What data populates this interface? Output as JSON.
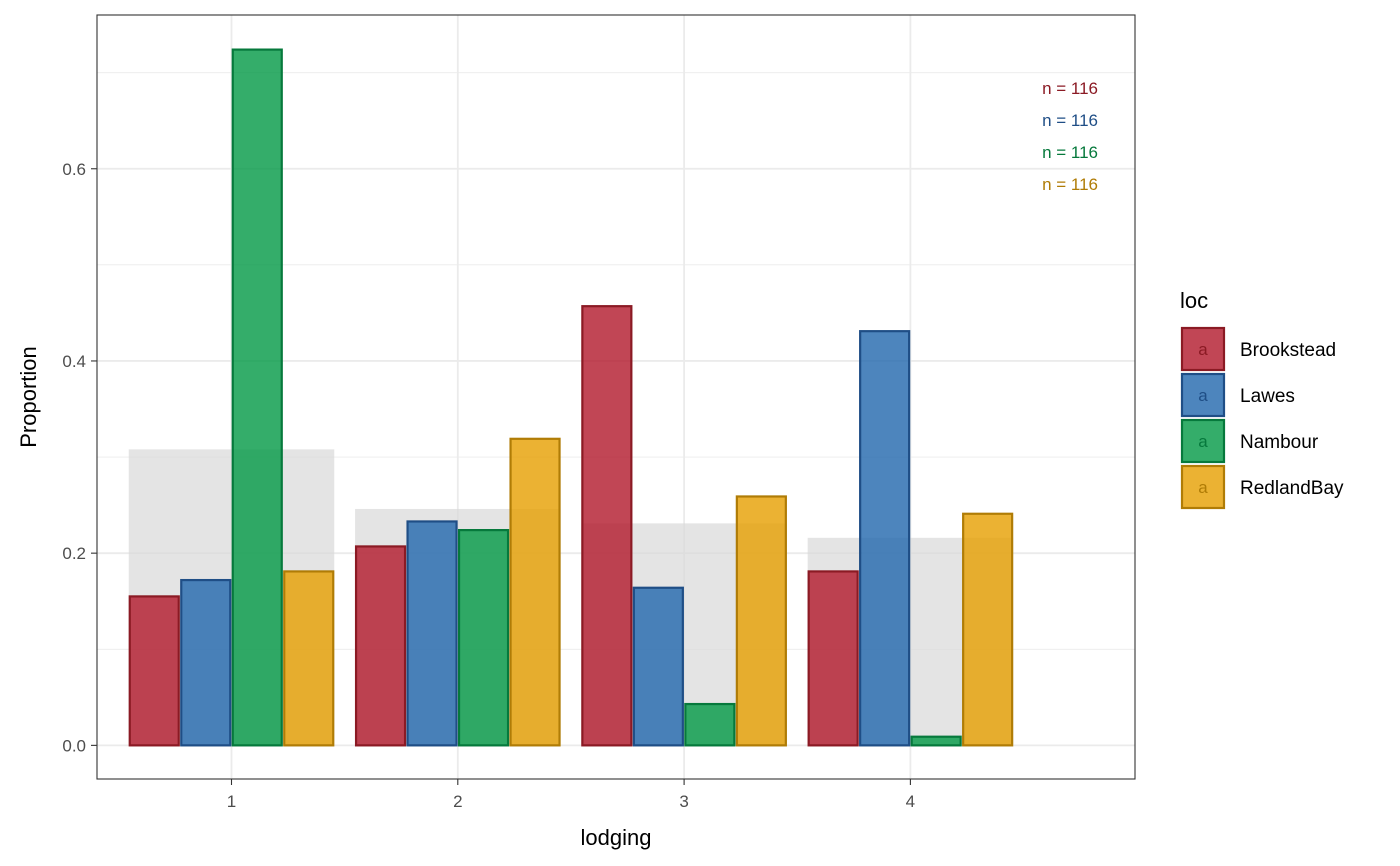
{
  "chart_data": {
    "type": "bar",
    "xlabel": "lodging",
    "ylabel": "Proportion",
    "categories": [
      "1",
      "2",
      "3",
      "4"
    ],
    "ylim": [
      -0.035,
      0.76
    ],
    "y_ticks": [
      0.0,
      0.2,
      0.4,
      0.6
    ],
    "y_tick_labels": [
      "0.0",
      "0.2",
      "0.4",
      "0.6"
    ],
    "grid": true,
    "legend": {
      "title": "loc",
      "position": "right",
      "key_glyph": "a"
    },
    "series": [
      {
        "name": "Brookstead",
        "values": [
          0.155,
          0.207,
          0.457,
          0.181
        ],
        "fill": "#b2182b",
        "stroke": "#8b1a24"
      },
      {
        "name": "Lawes",
        "values": [
          0.172,
          0.233,
          0.164,
          0.431
        ],
        "fill": "#2166ac",
        "stroke": "#1f4e86"
      },
      {
        "name": "Nambour",
        "values": [
          0.724,
          0.224,
          0.043,
          0.009
        ],
        "fill": "#019845",
        "stroke": "#06793c"
      },
      {
        "name": "RedlandBay",
        "values": [
          0.181,
          0.319,
          0.259,
          0.241
        ],
        "fill": "#e69f00",
        "stroke": "#b07c06"
      }
    ],
    "background_bars": {
      "values": [
        0.308,
        0.246,
        0.231,
        0.216
      ],
      "fill": "#d9d9d9"
    },
    "annotations": [
      {
        "text": "n = 116",
        "color": "#8b1a24"
      },
      {
        "text": "n = 116",
        "color": "#1f4e86"
      },
      {
        "text": "n = 116",
        "color": "#06793c"
      },
      {
        "text": "n = 116",
        "color": "#b07c06"
      }
    ]
  }
}
